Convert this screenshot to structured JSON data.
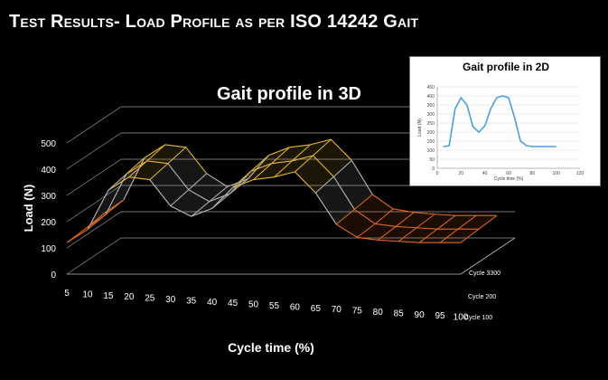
{
  "slide": {
    "title": "Test Results- Load Profile as per ISO 14242 Gait"
  },
  "colors": {
    "background": "#000000",
    "title_text": "#ffffff",
    "surface_high": "#e8b830",
    "surface_mid": "#b8b8b8",
    "surface_low": "#e06820",
    "inset_background": "#ffffff",
    "inset_line": "#4aa0d8"
  },
  "chart_data": [
    {
      "type": "surface",
      "title": "Gait profile in 3D",
      "xlabel": "Cycle time (%)",
      "ylabel": "Load (N)",
      "ylim": [
        0,
        500
      ],
      "yticks": [
        "0",
        "100",
        "200",
        "300",
        "400",
        "500"
      ],
      "categories": [
        "5",
        "10",
        "15",
        "20",
        "25",
        "30",
        "35",
        "40",
        "45",
        "50",
        "55",
        "60",
        "65",
        "70",
        "75",
        "80",
        "85",
        "90",
        "95",
        "100"
      ],
      "depth_labels": [
        "Cycle 100",
        "Cycle 200",
        "Cycle 3300"
      ],
      "series": [
        {
          "name": "Cycle 100",
          "values": [
            120,
            170,
            320,
            370,
            360,
            260,
            220,
            250,
            330,
            360,
            370,
            390,
            310,
            190,
            140,
            130,
            125,
            120,
            120,
            120
          ]
        },
        {
          "name": "Cycle 200",
          "values": [
            120,
            175,
            330,
            380,
            370,
            270,
            225,
            255,
            340,
            370,
            380,
            400,
            320,
            195,
            140,
            130,
            125,
            120,
            120,
            120
          ]
        },
        {
          "name": "Cycle 3300",
          "values": [
            125,
            180,
            340,
            390,
            380,
            280,
            230,
            260,
            350,
            380,
            390,
            410,
            330,
            200,
            145,
            132,
            125,
            120,
            120,
            120
          ]
        }
      ],
      "grid": true
    },
    {
      "type": "line",
      "title": "Gait profile in 2D",
      "xlabel": "Cycle time (%)",
      "ylabel": "Load (N)",
      "xlim": [
        0,
        120
      ],
      "ylim": [
        0,
        450
      ],
      "xticks": [
        "0",
        "20",
        "40",
        "60",
        "80",
        "100",
        "120"
      ],
      "yticks": [
        "0",
        "50",
        "100",
        "150",
        "200",
        "250",
        "300",
        "350",
        "400",
        "450"
      ],
      "x": [
        5,
        10,
        15,
        20,
        25,
        30,
        35,
        40,
        45,
        50,
        55,
        60,
        65,
        70,
        75,
        80,
        85,
        90,
        95,
        100
      ],
      "series": [
        {
          "name": "",
          "values": [
            120,
            125,
            330,
            390,
            350,
            230,
            200,
            235,
            330,
            390,
            400,
            390,
            280,
            150,
            125,
            120,
            120,
            120,
            120,
            120
          ]
        }
      ],
      "grid": true
    }
  ]
}
